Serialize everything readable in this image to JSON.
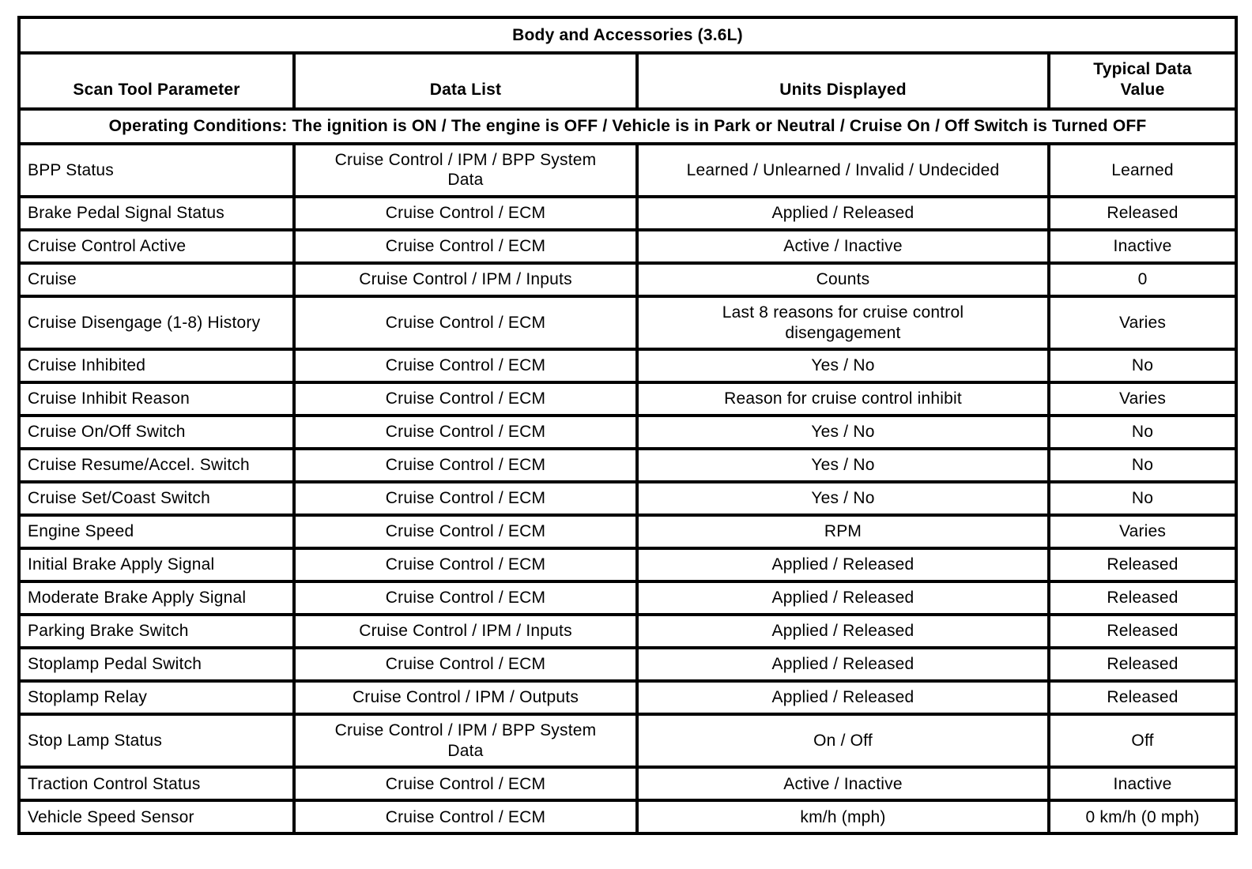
{
  "table": {
    "title": "Body and Accessories (3.6L)",
    "columns": [
      "Scan Tool Parameter",
      "Data List",
      "Units Displayed",
      "Typical Data Value"
    ],
    "operating_conditions": "Operating Conditions: The ignition is ON / The engine is OFF / Vehicle is in Park or Neutral / Cruise On / Off Switch is Turned OFF",
    "rows": [
      {
        "parameter": "BPP Status",
        "data_list": "Cruise Control / IPM / BPP System Data",
        "units": "Learned / Unlearned / Invalid / Undecided",
        "value": "Learned"
      },
      {
        "parameter": "Brake Pedal Signal Status",
        "data_list": "Cruise Control / ECM",
        "units": "Applied / Released",
        "value": "Released"
      },
      {
        "parameter": "Cruise Control Active",
        "data_list": "Cruise Control / ECM",
        "units": "Active / Inactive",
        "value": "Inactive"
      },
      {
        "parameter": "Cruise",
        "data_list": "Cruise Control / IPM / Inputs",
        "units": "Counts",
        "value": "0"
      },
      {
        "parameter": "Cruise Disengage (1-8) History",
        "data_list": "Cruise Control / ECM",
        "units": "Last 8 reasons for cruise control disengagement",
        "value": "Varies"
      },
      {
        "parameter": "Cruise Inhibited",
        "data_list": "Cruise Control / ECM",
        "units": "Yes / No",
        "value": "No"
      },
      {
        "parameter": "Cruise Inhibit Reason",
        "data_list": "Cruise Control / ECM",
        "units": "Reason for cruise control inhibit",
        "value": "Varies"
      },
      {
        "parameter": "Cruise On/Off Switch",
        "data_list": "Cruise Control / ECM",
        "units": "Yes / No",
        "value": "No"
      },
      {
        "parameter": "Cruise Resume/Accel. Switch",
        "data_list": "Cruise Control / ECM",
        "units": "Yes / No",
        "value": "No"
      },
      {
        "parameter": "Cruise Set/Coast Switch",
        "data_list": "Cruise Control / ECM",
        "units": "Yes / No",
        "value": "No"
      },
      {
        "parameter": "Engine Speed",
        "data_list": "Cruise Control / ECM",
        "units": "RPM",
        "value": "Varies"
      },
      {
        "parameter": "Initial Brake Apply Signal",
        "data_list": "Cruise Control / ECM",
        "units": "Applied / Released",
        "value": "Released"
      },
      {
        "parameter": "Moderate Brake Apply Signal",
        "data_list": "Cruise Control / ECM",
        "units": "Applied / Released",
        "value": "Released"
      },
      {
        "parameter": "Parking Brake Switch",
        "data_list": "Cruise Control / IPM / Inputs",
        "units": "Applied / Released",
        "value": "Released"
      },
      {
        "parameter": "Stoplamp Pedal Switch",
        "data_list": "Cruise Control / ECM",
        "units": "Applied / Released",
        "value": "Released"
      },
      {
        "parameter": "Stoplamp Relay",
        "data_list": "Cruise Control / IPM / Outputs",
        "units": "Applied / Released",
        "value": "Released"
      },
      {
        "parameter": "Stop Lamp Status",
        "data_list": "Cruise Control / IPM / BPP System Data",
        "units": "On / Off",
        "value": "Off"
      },
      {
        "parameter": "Traction Control Status",
        "data_list": "Cruise Control / ECM",
        "units": "Active / Inactive",
        "value": "Inactive"
      },
      {
        "parameter": "Vehicle Speed Sensor",
        "data_list": "Cruise Control / ECM",
        "units": "km/h (mph)",
        "value": "0 km/h (0 mph)"
      }
    ],
    "border_color": "#000000",
    "text_color": "#000000",
    "background_color": "#ffffff"
  }
}
